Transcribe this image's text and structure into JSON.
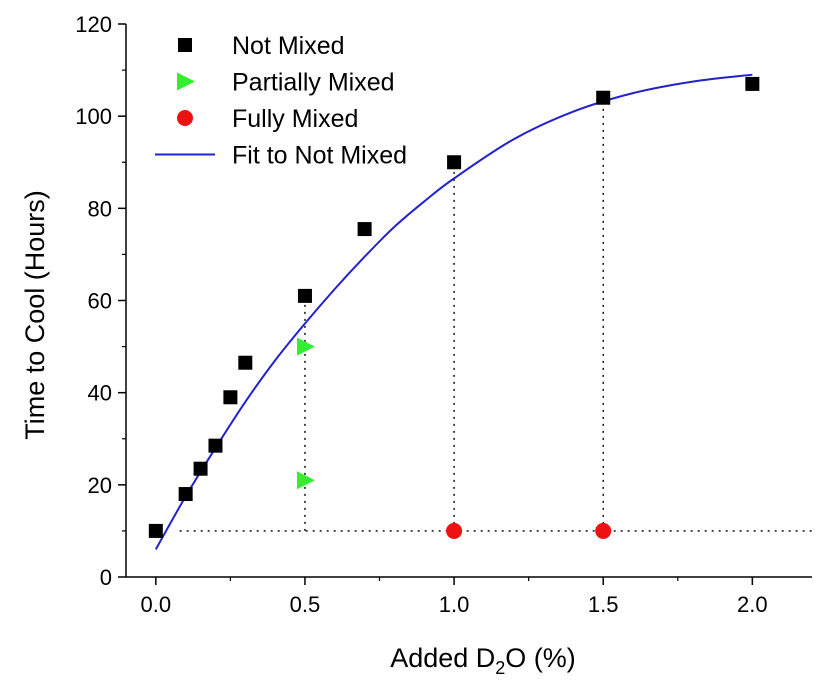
{
  "chart_data": {
    "type": "scatter",
    "xlabel": "Added D",
    "xlabel_sub": "2",
    "xlabel_suffix": "O (%)",
    "ylabel": "Time to Cool (Hours)",
    "xlim": [
      -0.1,
      2.2
    ],
    "ylim": [
      0,
      120
    ],
    "xticks": [
      0.0,
      0.5,
      1.0,
      1.5,
      2.0
    ],
    "xtick_labels": [
      "0.0",
      "0.5",
      "1.0",
      "1.5",
      "2.0"
    ],
    "yticks": [
      0,
      20,
      40,
      60,
      80,
      100,
      120
    ],
    "ytick_labels": [
      "0",
      "20",
      "40",
      "60",
      "80",
      "100",
      "120"
    ],
    "grid": false,
    "legend_position": "top-left",
    "series": [
      {
        "name": "Not Mixed",
        "marker": "square",
        "color": "#000000",
        "points": [
          [
            0.0,
            10
          ],
          [
            0.1,
            18
          ],
          [
            0.15,
            23.5
          ],
          [
            0.2,
            28.5
          ],
          [
            0.25,
            39
          ],
          [
            0.3,
            46.5
          ],
          [
            0.5,
            61
          ],
          [
            0.7,
            75.5
          ],
          [
            1.0,
            90
          ],
          [
            1.5,
            104
          ],
          [
            2.0,
            107
          ]
        ]
      },
      {
        "name": "Partially Mixed",
        "marker": "triangle-right",
        "color": "#33ee33",
        "points": [
          [
            0.5,
            50
          ],
          [
            0.5,
            21
          ]
        ]
      },
      {
        "name": "Fully Mixed",
        "marker": "circle",
        "color": "#ee1111",
        "points": [
          [
            1.0,
            10
          ],
          [
            1.5,
            10
          ]
        ]
      },
      {
        "name": "Fit to Not Mixed",
        "marker": "line",
        "color": "#2222cc",
        "points": [
          [
            0.0,
            6
          ],
          [
            0.1,
            17.5
          ],
          [
            0.2,
            28
          ],
          [
            0.3,
            38
          ],
          [
            0.4,
            47
          ],
          [
            0.5,
            55
          ],
          [
            0.6,
            62.5
          ],
          [
            0.7,
            69.5
          ],
          [
            0.8,
            76
          ],
          [
            0.9,
            81.5
          ],
          [
            1.0,
            86.5
          ],
          [
            1.2,
            95
          ],
          [
            1.4,
            101
          ],
          [
            1.6,
            105
          ],
          [
            1.8,
            107.5
          ],
          [
            2.0,
            109
          ]
        ]
      }
    ],
    "reference_lines": [
      {
        "style": "dotted",
        "points": [
          [
            0.08,
            10
          ],
          [
            2.22,
            10
          ]
        ]
      },
      {
        "style": "dotted",
        "points": [
          [
            0.5,
            10
          ],
          [
            0.5,
            61
          ]
        ]
      },
      {
        "style": "dotted",
        "points": [
          [
            1.0,
            10
          ],
          [
            1.0,
            90
          ]
        ]
      },
      {
        "style": "dotted",
        "points": [
          [
            1.5,
            10
          ],
          [
            1.5,
            104
          ]
        ]
      }
    ]
  }
}
